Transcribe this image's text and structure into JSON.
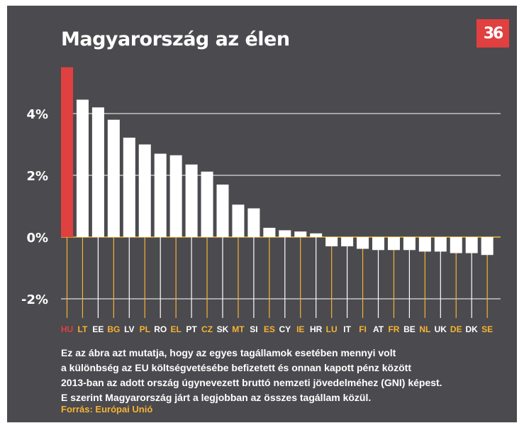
{
  "title": "Magyarország az élen",
  "logo_text": "36",
  "description_lines": [
    "Ez az ábra azt mutatja, hogy az egyes tagállamok esetében mennyi volt",
    "a különbség az EU költségvetésébe befizetett és onnan kapott pénz között",
    "2013-ban az adott ország úgynevezett bruttó nemzeti jövedelméhez (GNI) képest.",
    "E szerint Magyarország járt a legjobban az összes tagállam közül."
  ],
  "source": "Forrás: Európai Unió",
  "colors": {
    "background": "#4b4a4e",
    "bar": "#ffffff",
    "highlight": "#e0403f",
    "accent": "#f6b334",
    "label": "#ffffff"
  },
  "chart_data": {
    "type": "bar",
    "categories": [
      "HU",
      "LT",
      "EE",
      "BG",
      "LV",
      "PL",
      "RO",
      "EL",
      "PT",
      "CZ",
      "SK",
      "MT",
      "SI",
      "ES",
      "CY",
      "IE",
      "HR",
      "LU",
      "IT",
      "FI",
      "AT",
      "FR",
      "BE",
      "NL",
      "UK",
      "DE",
      "DK",
      "SE"
    ],
    "values": [
      5.5,
      4.45,
      4.2,
      3.8,
      3.22,
      3.0,
      2.7,
      2.65,
      2.35,
      2.12,
      1.7,
      1.05,
      0.93,
      0.3,
      0.22,
      0.18,
      0.12,
      -0.3,
      -0.3,
      -0.38,
      -0.42,
      -0.42,
      -0.42,
      -0.47,
      -0.47,
      -0.52,
      -0.52,
      -0.58
    ],
    "highlight_categories": [
      "HU"
    ],
    "accent_categories": [
      "HU",
      "LT",
      "BG",
      "PL",
      "EL",
      "CZ",
      "MT",
      "ES",
      "IE",
      "LU",
      "FI",
      "FR",
      "NL",
      "DE",
      "SE"
    ],
    "y_ticks": [
      4,
      2,
      0,
      -2
    ],
    "y_tick_labels": [
      "4%",
      "2%",
      "0%",
      "-2%"
    ],
    "ylim": [
      -2.6,
      5.6
    ],
    "grid": true,
    "legend": "none"
  }
}
